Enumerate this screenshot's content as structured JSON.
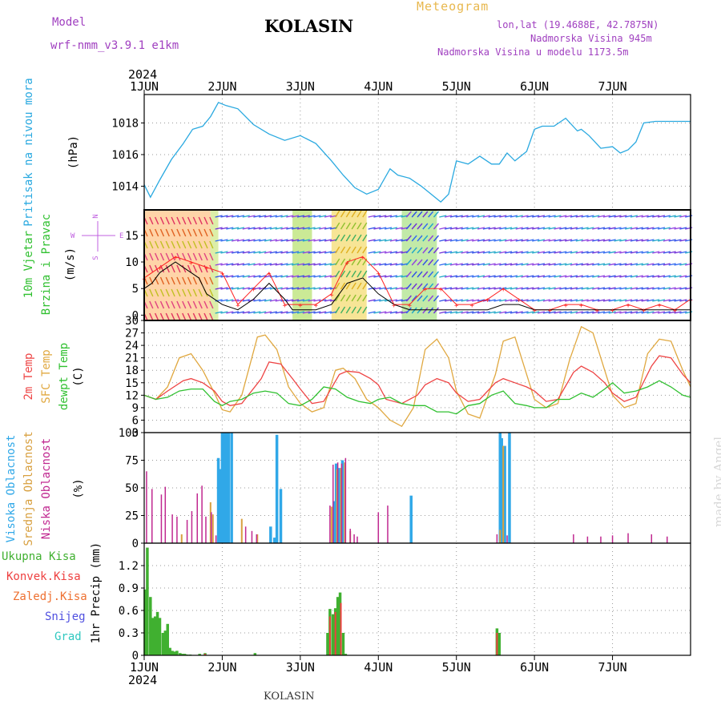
{
  "header": {
    "title": "KOLASIN",
    "meteogram_label": "Meteogram",
    "model_label": "Model",
    "model_version": "wrf-nmm_v3.9.1 e1km",
    "lonlat": "lon,lat (19.4688E, 42.7875N)",
    "elevation": "Nadmorska Visina 945m",
    "model_elevation": "Nadmorska Visina u modelu 1173.5m"
  },
  "footer": {
    "station": "KOLASIN"
  },
  "signature": "made by Angel",
  "time_axis": {
    "year": "2024",
    "day_labels": [
      "1JUN",
      "2JUN",
      "3JUN",
      "4JUN",
      "5JUN",
      "6JUN",
      "7JUN"
    ]
  },
  "colors": {
    "pressure": "#2aa9e0",
    "temp2m": "#ee4444",
    "sfc_temp": "#e0a840",
    "dewpoint": "#30c030",
    "cloud_high": "#30a8e8",
    "cloud_mid": "#d8a040",
    "cloud_low": "#c02890",
    "precip_total": "#40b030",
    "precip_conv": "#ee4040",
    "precip_frozen": "#ee7030",
    "snow": "#5050e0",
    "hail": "#30c8c0",
    "wind_gust": "#ff2020",
    "wind_speed": "#000000"
  },
  "chart_data": [
    {
      "type": "line",
      "name": "pressure",
      "labels": [
        "Pritisak na nivou mora",
        "(hPa)"
      ],
      "y_ticks": [
        1014,
        1016,
        1018
      ],
      "ylim": [
        1012.5,
        1019.8
      ],
      "x_unit": "days since 1 JUN 00UTC",
      "series": [
        {
          "name": "Pritisak na nivou mora",
          "x": [
            0,
            0.08,
            0.2,
            0.35,
            0.5,
            0.62,
            0.75,
            0.85,
            0.95,
            1.05,
            1.2,
            1.4,
            1.6,
            1.8,
            2.0,
            2.2,
            2.4,
            2.55,
            2.7,
            2.85,
            3.0,
            3.15,
            3.25,
            3.4,
            3.55,
            3.65,
            3.8,
            3.9,
            4.0,
            4.15,
            4.3,
            4.45,
            4.55,
            4.65,
            4.75,
            4.9,
            5.0,
            5.1,
            5.25,
            5.4,
            5.55,
            5.6,
            5.7,
            5.85,
            6.0,
            6.1,
            6.2,
            6.3,
            6.4,
            6.55,
            6.7,
            6.85,
            7.0
          ],
          "values": [
            1014.1,
            1013.3,
            1014.4,
            1015.7,
            1016.7,
            1017.6,
            1017.8,
            1018.4,
            1019.3,
            1019.1,
            1018.9,
            1017.9,
            1017.3,
            1016.9,
            1017.2,
            1016.7,
            1015.6,
            1014.7,
            1013.9,
            1013.5,
            1013.8,
            1015.1,
            1014.7,
            1014.5,
            1014.0,
            1013.6,
            1013.0,
            1013.5,
            1015.6,
            1015.4,
            1015.9,
            1015.4,
            1015.4,
            1016.1,
            1015.6,
            1016.2,
            1017.6,
            1017.8,
            1017.8,
            1018.3,
            1017.5,
            1017.6,
            1017.2,
            1016.4,
            1016.5,
            1016.1,
            1016.3,
            1016.8,
            1018.0,
            1018.1,
            1018.1,
            1018.1,
            1018.1
          ]
        }
      ]
    },
    {
      "type": "line",
      "name": "wind",
      "labels": [
        "10m Vjetar",
        "Brzina i Pravac",
        "(m/s)"
      ],
      "compass": {
        "north": "N",
        "west": "W",
        "east": "E",
        "south": "S"
      },
      "y_ticks": [
        0,
        5,
        10,
        15
      ],
      "ylim": [
        -1,
        19.8
      ],
      "x_unit": "days since 1 JUN 00UTC",
      "series": [
        {
          "name": "speed",
          "x": [
            0,
            0.1,
            0.2,
            0.3,
            0.4,
            0.5,
            0.6,
            0.7,
            0.8,
            1.0,
            1.2,
            1.4,
            1.6,
            1.8,
            1.9,
            2.0,
            2.2,
            2.4,
            2.6,
            2.8,
            3.0,
            3.2,
            3.4,
            3.5,
            3.6,
            3.7,
            3.8,
            4.0,
            4.2,
            4.4,
            4.6,
            4.8,
            5.0,
            5.2,
            5.4,
            5.6,
            5.8,
            6.0,
            6.2,
            6.4,
            6.6,
            6.8,
            7.0
          ],
          "values": [
            5,
            6,
            8,
            9,
            10,
            9,
            8,
            7,
            4,
            2,
            1,
            3,
            6,
            3,
            1,
            1,
            1,
            2,
            6,
            7,
            4,
            2,
            1,
            1,
            1,
            1,
            1,
            1,
            1,
            1,
            2,
            2,
            1,
            1,
            1,
            1,
            1,
            1,
            1,
            1,
            1,
            1,
            1
          ]
        },
        {
          "name": "gust",
          "x": [
            0,
            0.2,
            0.4,
            0.6,
            0.8,
            1.0,
            1.2,
            1.4,
            1.6,
            1.8,
            2.0,
            2.2,
            2.4,
            2.6,
            2.8,
            3.0,
            3.2,
            3.4,
            3.6,
            3.8,
            4.0,
            4.2,
            4.4,
            4.6,
            4.8,
            5.0,
            5.2,
            5.4,
            5.6,
            5.8,
            6.0,
            6.2,
            6.4,
            6.6,
            6.8,
            7.0
          ],
          "values": [
            7,
            9,
            11,
            10,
            9,
            8,
            2,
            5,
            8,
            2,
            2,
            2,
            4,
            10,
            11,
            8,
            2,
            2,
            5,
            5,
            2,
            2,
            3,
            5,
            3,
            1,
            1,
            2,
            2,
            1,
            1,
            2,
            1,
            2,
            1,
            3
          ]
        }
      ]
    },
    {
      "type": "line",
      "name": "temperature",
      "labels": [
        "2m Temp",
        "SFC Temp",
        "dewpt Temp",
        "(C)"
      ],
      "y_ticks": [
        3,
        6,
        9,
        12,
        15,
        18,
        21,
        24,
        27,
        30
      ],
      "ylim": [
        3,
        30
      ],
      "x_unit": "days since 1 JUN 00UTC",
      "series": [
        {
          "name": "2m Temp",
          "x": [
            0,
            0.15,
            0.3,
            0.5,
            0.6,
            0.75,
            0.9,
            1.0,
            1.1,
            1.25,
            1.5,
            1.6,
            1.75,
            1.9,
            2.0,
            2.15,
            2.3,
            2.5,
            2.6,
            2.75,
            2.9,
            3.0,
            3.1,
            3.3,
            3.5,
            3.6,
            3.75,
            3.9,
            4.0,
            4.15,
            4.3,
            4.5,
            4.6,
            4.75,
            4.9,
            5.0,
            5.15,
            5.3,
            5.5,
            5.6,
            5.75,
            5.9,
            6.0,
            6.15,
            6.3,
            6.5,
            6.6,
            6.75,
            6.9,
            7.0
          ],
          "values": [
            12,
            11,
            13,
            15.5,
            16,
            15,
            13,
            10.5,
            9.5,
            10,
            16,
            20,
            19.5,
            16,
            13.5,
            10,
            10.5,
            17,
            17.8,
            17.5,
            16,
            14.5,
            11,
            10,
            12,
            14.5,
            16,
            15,
            12.5,
            10.5,
            11,
            15,
            16,
            15,
            14,
            13,
            10.5,
            11,
            17.5,
            19,
            17.5,
            15,
            12.5,
            10.5,
            11.5,
            19,
            21.5,
            21,
            17,
            15
          ]
        },
        {
          "name": "SFC Temp",
          "x": [
            0,
            0.15,
            0.3,
            0.45,
            0.6,
            0.75,
            0.9,
            1.0,
            1.1,
            1.25,
            1.45,
            1.55,
            1.7,
            1.85,
            2.0,
            2.15,
            2.3,
            2.45,
            2.55,
            2.7,
            2.85,
            3.0,
            3.15,
            3.3,
            3.45,
            3.6,
            3.75,
            3.9,
            4.0,
            4.15,
            4.3,
            4.5,
            4.6,
            4.75,
            4.9,
            5.0,
            5.15,
            5.3,
            5.45,
            5.6,
            5.75,
            5.9,
            6.0,
            6.15,
            6.3,
            6.45,
            6.6,
            6.75,
            6.9,
            7.0
          ],
          "values": [
            12,
            11,
            14,
            21,
            22,
            18,
            12.5,
            8.5,
            8,
            12,
            26,
            26.5,
            23,
            14,
            10,
            8,
            9,
            18,
            18.5,
            16,
            11,
            9,
            6,
            4.5,
            9,
            23,
            25.5,
            21,
            13,
            7.5,
            6.5,
            17,
            25,
            26,
            17,
            11,
            9,
            10,
            20.5,
            28.5,
            27,
            18,
            12,
            9,
            10,
            22,
            25.5,
            25,
            18,
            14
          ]
        },
        {
          "name": "dewpt Temp",
          "x": [
            0,
            0.15,
            0.3,
            0.45,
            0.6,
            0.75,
            0.9,
            1.0,
            1.1,
            1.25,
            1.4,
            1.55,
            1.7,
            1.85,
            2.0,
            2.15,
            2.3,
            2.45,
            2.6,
            2.75,
            2.9,
            3.0,
            3.15,
            3.3,
            3.45,
            3.6,
            3.75,
            3.9,
            4.0,
            4.15,
            4.3,
            4.45,
            4.6,
            4.75,
            4.9,
            5.0,
            5.15,
            5.3,
            5.45,
            5.6,
            5.75,
            5.9,
            6.0,
            6.15,
            6.3,
            6.45,
            6.6,
            6.75,
            6.9,
            7.0
          ],
          "values": [
            12,
            11,
            11.5,
            13,
            13.5,
            13.5,
            10.5,
            9.5,
            10.5,
            11,
            12.5,
            13,
            12.5,
            10,
            9.5,
            11,
            14,
            13.5,
            11.5,
            10.5,
            10,
            11,
            11.5,
            10,
            9.5,
            9.5,
            8,
            8,
            7.5,
            9.5,
            10,
            12,
            13,
            10,
            9.5,
            9,
            9,
            11,
            11,
            12.5,
            11.5,
            13.5,
            15,
            12.5,
            13,
            14,
            15.5,
            14,
            12,
            11.5
          ]
        }
      ]
    },
    {
      "type": "bar",
      "name": "cloud",
      "labels": [
        "Visoka Oblacnost",
        "Srednja Oblacnost",
        "Niska Oblacnost",
        "(%)"
      ],
      "y_ticks": [
        0,
        25,
        50,
        75,
        100
      ],
      "ylim": [
        0,
        100
      ],
      "x_unit": "days since 1 JUN 00UTC",
      "series": [
        {
          "name": "Visoka Oblacnost",
          "x": [
            0.95,
            0.97,
            1.0,
            1.03,
            1.05,
            1.08,
            1.12,
            1.62,
            1.67,
            1.7,
            1.75,
            2.43,
            2.46,
            2.5,
            2.54,
            3.42,
            4.56,
            4.58,
            4.62,
            4.68
          ],
          "values": [
            77,
            67,
            100,
            100,
            100,
            100,
            100,
            15,
            5,
            98,
            49,
            38,
            72,
            68,
            75,
            43,
            100,
            95,
            88,
            100
          ]
        },
        {
          "name": "Srednja Oblacnost",
          "x": [
            0.48,
            0.85,
            0.88,
            1.25,
            1.45,
            2.4,
            2.47,
            2.52,
            2.57,
            2.64,
            4.56,
            4.6
          ],
          "values": [
            8,
            37,
            26,
            22,
            8,
            33,
            67,
            68,
            73,
            11,
            12,
            88
          ]
        },
        {
          "name": "Niska Oblacnost",
          "x": [
            0.03,
            0.1,
            0.22,
            0.27,
            0.36,
            0.42,
            0.55,
            0.61,
            0.68,
            0.74,
            0.79,
            0.86,
            0.92,
            1.3,
            1.38,
            1.44,
            2.38,
            2.42,
            2.48,
            2.53,
            2.58,
            2.64,
            2.69,
            2.73,
            3.0,
            3.12,
            4.52,
            4.65,
            5.5,
            5.68,
            5.85,
            6.0,
            6.2,
            6.5,
            6.7
          ],
          "values": [
            65,
            49,
            44,
            51,
            26,
            24,
            21,
            29,
            45,
            52,
            24,
            28,
            7,
            15,
            11,
            8,
            34,
            71,
            73,
            72,
            77,
            13,
            8,
            6,
            28,
            34,
            8,
            7,
            8,
            6,
            6,
            7,
            9,
            8,
            6
          ]
        }
      ]
    },
    {
      "type": "bar",
      "name": "precipitation",
      "labels": [
        "Ukupna Kisa",
        "Konvek.Kisa",
        "Zaledj.Kisa",
        "Snijeg",
        "Grad",
        "1hr Precip (mm)"
      ],
      "y_ticks": [
        0,
        0.3,
        0.6,
        0.9,
        1.2
      ],
      "ylim": [
        0,
        1.5
      ],
      "x_unit": "days since 1 JUN 00UTC",
      "series": [
        {
          "name": "Ukupna Kisa",
          "x": [
            0.01,
            0.04,
            0.08,
            0.11,
            0.14,
            0.17,
            0.2,
            0.24,
            0.27,
            0.3,
            0.33,
            0.36,
            0.39,
            0.42,
            0.46,
            0.49,
            0.52,
            0.55,
            0.59,
            0.71,
            0.78,
            1.42,
            2.35,
            2.38,
            2.42,
            2.45,
            2.48,
            2.51,
            2.55,
            2.58,
            4.52,
            4.55
          ],
          "values": [
            0.88,
            1.44,
            0.78,
            0.5,
            0.52,
            0.58,
            0.5,
            0.3,
            0.33,
            0.42,
            0.1,
            0.06,
            0.05,
            0.06,
            0.03,
            0.02,
            0.02,
            0.01,
            0.01,
            0.02,
            0.03,
            0.03,
            0.3,
            0.62,
            0.55,
            0.63,
            0.78,
            0.84,
            0.3,
            0.02,
            0.36,
            0.3
          ]
        },
        {
          "name": "Konvek.Kisa",
          "x": [
            0.78,
            2.38,
            2.45,
            2.52,
            4.52
          ],
          "values": [
            0.02,
            0.52,
            0.58,
            0.7,
            0.3
          ]
        }
      ]
    }
  ]
}
